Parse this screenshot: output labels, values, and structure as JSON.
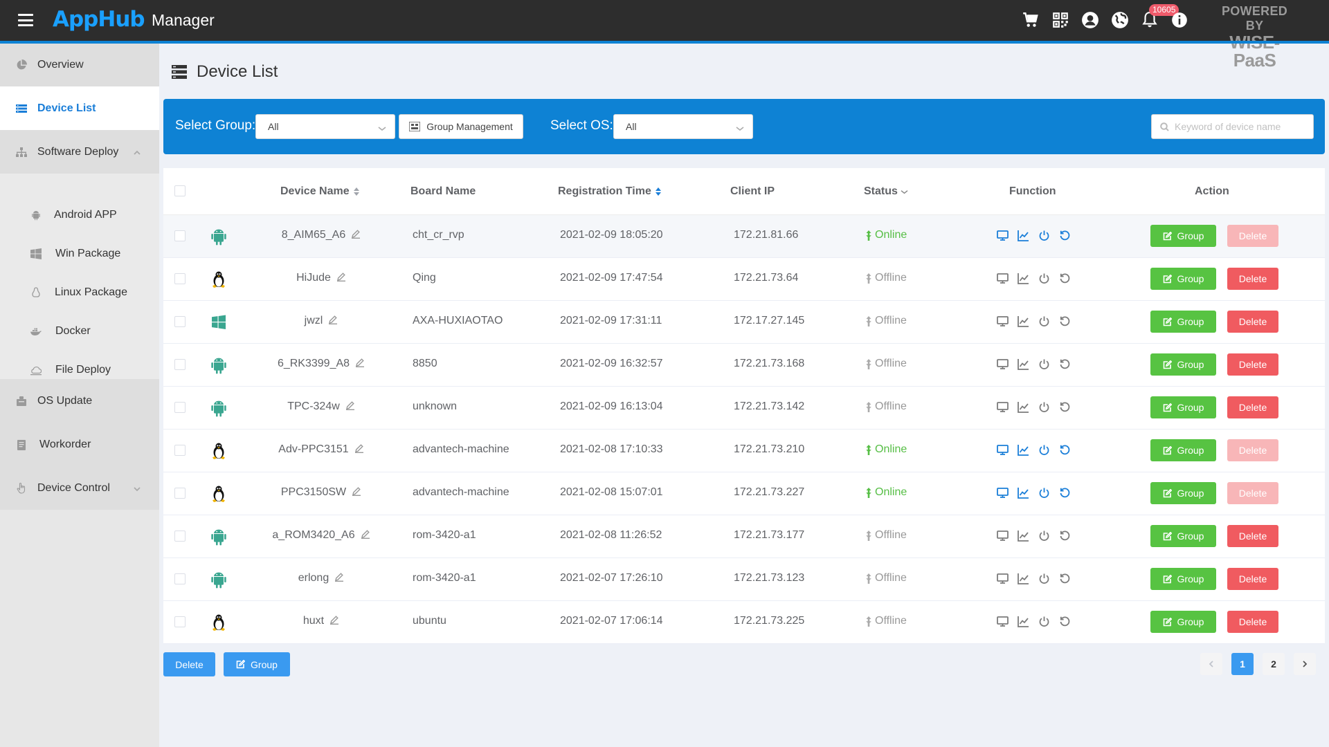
{
  "header": {
    "logo": "AppHub",
    "title": "Manager",
    "notification_count": "10605",
    "powered_by_line1": "POWERED BY",
    "powered_by_line2": "WISE-PaaS"
  },
  "sidebar": {
    "items": [
      {
        "label": "Overview",
        "icon": "pie-chart-icon"
      },
      {
        "label": "Device List",
        "icon": "list-icon",
        "active": true
      },
      {
        "label": "Software Deploy",
        "icon": "sitemap-icon",
        "expanded": true
      },
      {
        "label": "Android APP",
        "icon": "android-icon"
      },
      {
        "label": "Win Package",
        "icon": "windows-icon"
      },
      {
        "label": "Linux Package",
        "icon": "linux-icon"
      },
      {
        "label": "Docker",
        "icon": "docker-icon"
      },
      {
        "label": "File Deploy",
        "icon": "cloud-icon"
      },
      {
        "label": "OS Update",
        "icon": "os-update-icon"
      },
      {
        "label": "Workorder",
        "icon": "workorder-icon"
      },
      {
        "label": "Device Control",
        "icon": "hand-pointer-icon",
        "expanded": false
      }
    ]
  },
  "page": {
    "title": "Device List"
  },
  "filters": {
    "group_label": "Select Group:",
    "group_value": "All",
    "group_management_label": "Group Management",
    "os_label": "Select OS:",
    "os_value": "All",
    "search_placeholder": "Keyword of device name"
  },
  "table": {
    "columns": {
      "device_name": "Device Name",
      "board_name": "Board Name",
      "registration_time": "Registration Time",
      "client_ip": "Client IP",
      "status": "Status",
      "function": "Function",
      "action": "Action"
    },
    "group_button_label": "Group",
    "delete_button_label": "Delete",
    "rows": [
      {
        "os": "android",
        "device_name": "8_AIM65_A6",
        "board_name": "cht_cr_rvp",
        "registration_time": "2021-02-09 18:05:20",
        "client_ip": "172.21.81.66",
        "status": "Online"
      },
      {
        "os": "linux",
        "device_name": "HiJude",
        "board_name": "Qing",
        "registration_time": "2021-02-09 17:47:54",
        "client_ip": "172.21.73.64",
        "status": "Offline"
      },
      {
        "os": "windows",
        "device_name": "jwzl",
        "board_name": "AXA-HUXIAOTAO",
        "registration_time": "2021-02-09 17:31:11",
        "client_ip": "172.17.27.145",
        "status": "Offline"
      },
      {
        "os": "android",
        "device_name": "6_RK3399_A8",
        "board_name": "8850",
        "registration_time": "2021-02-09 16:32:57",
        "client_ip": "172.21.73.168",
        "status": "Offline"
      },
      {
        "os": "android",
        "device_name": "TPC-324w",
        "board_name": "unknown",
        "registration_time": "2021-02-09 16:13:04",
        "client_ip": "172.21.73.142",
        "status": "Offline"
      },
      {
        "os": "linux",
        "device_name": "Adv-PPC3151",
        "board_name": "advantech-machine",
        "registration_time": "2021-02-08 17:10:33",
        "client_ip": "172.21.73.210",
        "status": "Online"
      },
      {
        "os": "linux",
        "device_name": "PPC3150SW",
        "board_name": "advantech-machine",
        "registration_time": "2021-02-08 15:07:01",
        "client_ip": "172.21.73.227",
        "status": "Online"
      },
      {
        "os": "android",
        "device_name": "a_ROM3420_A6",
        "board_name": "rom-3420-a1",
        "registration_time": "2021-02-08 11:26:52",
        "client_ip": "172.21.73.177",
        "status": "Offline"
      },
      {
        "os": "android",
        "device_name": "erlong",
        "board_name": "rom-3420-a1",
        "registration_time": "2021-02-07 17:26:10",
        "client_ip": "172.21.73.123",
        "status": "Offline"
      },
      {
        "os": "linux",
        "device_name": "huxt",
        "board_name": "ubuntu",
        "registration_time": "2021-02-07 17:06:14",
        "client_ip": "172.21.73.225",
        "status": "Offline"
      }
    ]
  },
  "bulk_actions": {
    "delete_label": "Delete",
    "group_label": "Group"
  },
  "pagination": {
    "pages": [
      "1",
      "2"
    ],
    "current": "1"
  },
  "colors": {
    "accent": "#0e82d4",
    "online": "#56be45",
    "group_button": "#57c342",
    "delete_button": "#f05b60",
    "android": "#3aa690"
  }
}
